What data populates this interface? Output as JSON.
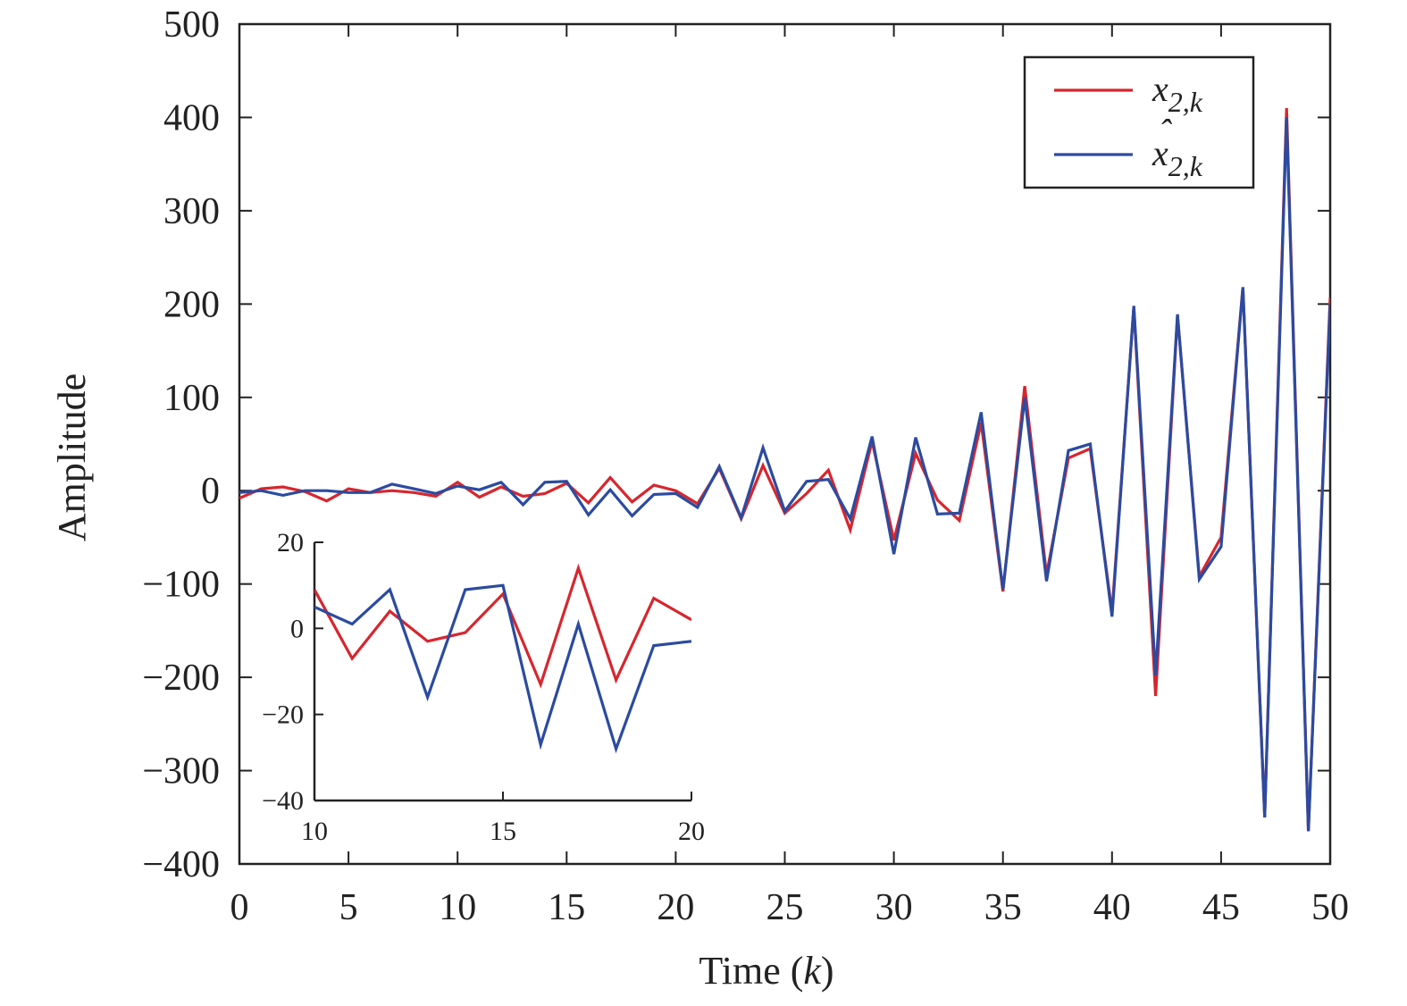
{
  "chart_data": [
    {
      "type": "line",
      "role": "main",
      "xlabel": "Time",
      "xlabel_var": "k",
      "ylabel": "Amplitude",
      "xlim": [
        0,
        50
      ],
      "ylim": [
        -400,
        500
      ],
      "xticks": [
        0,
        5,
        10,
        15,
        20,
        25,
        30,
        35,
        40,
        45,
        50
      ],
      "yticks": [
        500,
        400,
        300,
        200,
        100,
        0,
        -100,
        -200,
        -300,
        -400
      ],
      "ytick_labels": [
        "500",
        "400",
        "300",
        "200",
        "100",
        "0",
        "−100",
        "−200",
        "−300",
        "−400"
      ],
      "legend_position": "top-right",
      "grid": false,
      "x": [
        0,
        1,
        2,
        3,
        4,
        5,
        6,
        7,
        8,
        9,
        10,
        11,
        12,
        13,
        14,
        15,
        16,
        17,
        18,
        19,
        20,
        21,
        22,
        23,
        24,
        25,
        26,
        27,
        28,
        29,
        30,
        31,
        32,
        33,
        34,
        35,
        36,
        37,
        38,
        39,
        40,
        41,
        42,
        43,
        44,
        45,
        46,
        47,
        48,
        49,
        50
      ],
      "series": [
        {
          "name": "x",
          "sub": "2,k",
          "hat": false,
          "color": "#d7262e",
          "values": [
            -8,
            2,
            4,
            -1,
            -11,
            2,
            -2,
            0,
            -2,
            -6,
            9,
            -7,
            4,
            -6,
            -3,
            8,
            -13,
            14,
            -12,
            6,
            0,
            -14,
            24,
            -30,
            27,
            -24,
            -3,
            22,
            -42,
            53,
            -53,
            40,
            -10,
            -32,
            73,
            -108,
            112,
            -90,
            35,
            45,
            -130,
            197,
            -220,
            188,
            -92,
            -50,
            218,
            -350,
            410,
            -365,
            207
          ]
        },
        {
          "name": "x",
          "sub": "2,k",
          "hat": true,
          "color": "#2b4ba0",
          "values": [
            -2,
            0,
            -5,
            0,
            0,
            -2,
            -2,
            7,
            2,
            -3,
            5,
            1,
            9,
            -15,
            9,
            10,
            -26,
            1,
            -27,
            -4,
            -3,
            -18,
            26,
            -29,
            46,
            -22,
            10,
            12,
            -30,
            58,
            -68,
            57,
            -25,
            -24,
            84,
            -106,
            100,
            -97,
            43,
            50,
            -135,
            198,
            -198,
            189,
            -95,
            -60,
            218,
            -350,
            400,
            -365,
            200
          ]
        }
      ]
    },
    {
      "type": "line",
      "role": "inset",
      "xlim": [
        10,
        20
      ],
      "ylim": [
        -40,
        20
      ],
      "xticks": [
        10,
        15,
        20
      ],
      "yticks": [
        20,
        0,
        -20,
        -40
      ],
      "ytick_labels": [
        "20",
        "0",
        "−20",
        "−40"
      ],
      "x": [
        10,
        11,
        12,
        13,
        14,
        15,
        16,
        17,
        18,
        19,
        20
      ],
      "series": [
        {
          "color": "#d7262e",
          "values": [
            9,
            -7,
            4,
            -3,
            -1,
            8,
            -13,
            14,
            -12,
            7,
            2
          ]
        },
        {
          "color": "#2b4ba0",
          "values": [
            5,
            1,
            9,
            -16,
            9,
            10,
            -27,
            1,
            -28,
            -4,
            -3
          ]
        }
      ]
    }
  ]
}
